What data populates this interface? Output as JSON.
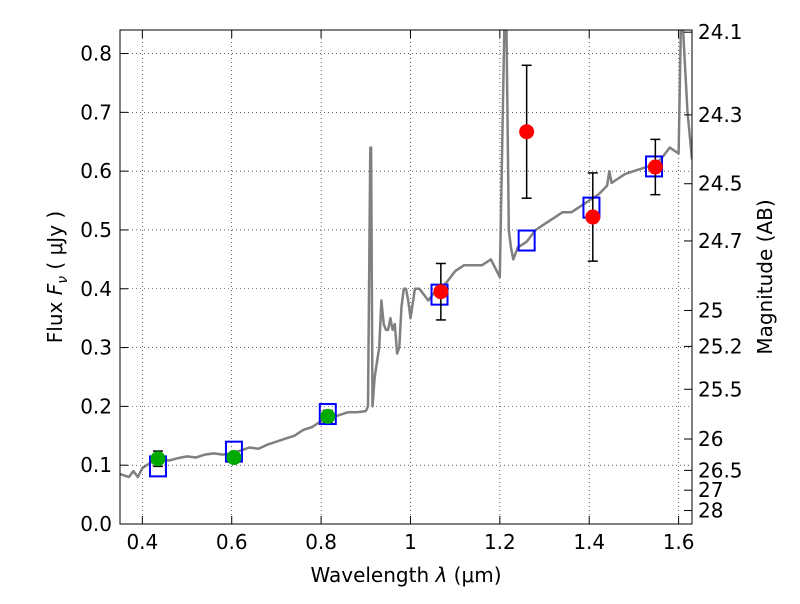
{
  "chart_data": {
    "type": "scatter",
    "xlabel": "Wavelength  λ (μm)",
    "ylabel": "Flux  F_ν  ( μJy )",
    "ylabel_parts": {
      "pre": "Flux  ",
      "sym": "F",
      "sub": "ν",
      "post": "  ( μJy )"
    },
    "xlabel_parts": {
      "pre": "Wavelength  ",
      "sym": "λ",
      "post": " (μm)"
    },
    "y2label": "Magnitude (AB)",
    "xlim": [
      0.35,
      1.63
    ],
    "ylim": [
      0.0,
      0.84
    ],
    "x_ticks": [
      0.4,
      0.6,
      0.8,
      1.0,
      1.2,
      1.4,
      1.6
    ],
    "x_tick_labels": [
      "0.4",
      "0.6",
      "0.8",
      "1",
      "1.2",
      "1.4",
      "1.6"
    ],
    "y_ticks": [
      0.0,
      0.1,
      0.2,
      0.3,
      0.4,
      0.5,
      0.6,
      0.7,
      0.8
    ],
    "y_tick_labels": [
      "0.0",
      "0.1",
      "0.2",
      "0.3",
      "0.4",
      "0.5",
      "0.6",
      "0.7",
      "0.8"
    ],
    "y2_ticks": [
      {
        "label": "24.1",
        "flux": 0.8363
      },
      {
        "label": "24.3",
        "flux": 0.6957
      },
      {
        "label": "24.5",
        "flux": 0.5786
      },
      {
        "label": "24.7",
        "flux": 0.4813
      },
      {
        "label": "25",
        "flux": 0.3631
      },
      {
        "label": "25.2",
        "flux": 0.302
      },
      {
        "label": "25.5",
        "flux": 0.2291
      },
      {
        "label": "26",
        "flux": 0.1445
      },
      {
        "label": "26.5",
        "flux": 0.0912
      },
      {
        "label": "27",
        "flux": 0.0575
      },
      {
        "label": "28",
        "flux": 0.0229
      }
    ],
    "grid": true,
    "grid_style": "dotted",
    "series": [
      {
        "kind": "line",
        "color": "#808080",
        "x": [
          0.35,
          0.37,
          0.38,
          0.39,
          0.4,
          0.42,
          0.44,
          0.46,
          0.48,
          0.5,
          0.52,
          0.54,
          0.56,
          0.58,
          0.6,
          0.62,
          0.64,
          0.66,
          0.68,
          0.7,
          0.72,
          0.74,
          0.76,
          0.78,
          0.8,
          0.82,
          0.84,
          0.86,
          0.88,
          0.9,
          0.905,
          0.91,
          0.912,
          0.915,
          0.918,
          0.92,
          0.93,
          0.935,
          0.94,
          0.945,
          0.95,
          0.955,
          0.96,
          0.965,
          0.97,
          0.975,
          0.98,
          0.985,
          0.99,
          0.995,
          1.0,
          1.01,
          1.02,
          1.03,
          1.04,
          1.05,
          1.06,
          1.08,
          1.1,
          1.12,
          1.14,
          1.16,
          1.18,
          1.2,
          1.21,
          1.215,
          1.22,
          1.225,
          1.23,
          1.235,
          1.24,
          1.26,
          1.28,
          1.3,
          1.32,
          1.34,
          1.36,
          1.38,
          1.4,
          1.42,
          1.44,
          1.445,
          1.45,
          1.46,
          1.48,
          1.5,
          1.52,
          1.54,
          1.56,
          1.58,
          1.6,
          1.605,
          1.61,
          1.62,
          1.625,
          1.63
        ],
        "y": [
          0.085,
          0.08,
          0.09,
          0.08,
          0.095,
          0.105,
          0.11,
          0.108,
          0.112,
          0.115,
          0.113,
          0.118,
          0.12,
          0.118,
          0.12,
          0.125,
          0.13,
          0.128,
          0.135,
          0.14,
          0.145,
          0.15,
          0.16,
          0.165,
          0.175,
          0.18,
          0.185,
          0.19,
          0.19,
          0.192,
          0.2,
          0.64,
          0.64,
          0.2,
          0.23,
          0.25,
          0.3,
          0.38,
          0.34,
          0.33,
          0.33,
          0.35,
          0.33,
          0.34,
          0.29,
          0.3,
          0.37,
          0.4,
          0.4,
          0.38,
          0.35,
          0.4,
          0.4,
          0.39,
          0.38,
          0.39,
          0.4,
          0.41,
          0.43,
          0.44,
          0.44,
          0.44,
          0.45,
          0.42,
          0.84,
          0.84,
          0.5,
          0.47,
          0.45,
          0.46,
          0.47,
          0.48,
          0.5,
          0.51,
          0.52,
          0.53,
          0.53,
          0.54,
          0.55,
          0.56,
          0.575,
          0.6,
          0.58,
          0.585,
          0.595,
          0.6,
          0.605,
          0.61,
          0.62,
          0.64,
          0.63,
          0.84,
          0.84,
          0.7,
          0.66,
          0.62
        ]
      },
      {
        "kind": "squares",
        "color": "#0000ff",
        "x": [
          0.435,
          0.605,
          0.815,
          1.065,
          1.26,
          1.405,
          1.545
        ],
        "y": [
          0.098,
          0.123,
          0.187,
          0.39,
          0.482,
          0.538,
          0.608
        ]
      },
      {
        "kind": "points",
        "color": "#00aa00",
        "x": [
          0.435,
          0.605,
          0.815
        ],
        "y": [
          0.111,
          0.113,
          0.183
        ],
        "yerr": [
          0.013,
          0.008,
          0.01
        ]
      },
      {
        "kind": "points",
        "color": "#ff0000",
        "x": [
          1.068,
          1.26,
          1.408,
          1.548
        ],
        "y": [
          0.395,
          0.667,
          0.522,
          0.607
        ],
        "yerr": [
          0.048,
          0.113,
          0.075,
          0.047
        ]
      }
    ]
  }
}
